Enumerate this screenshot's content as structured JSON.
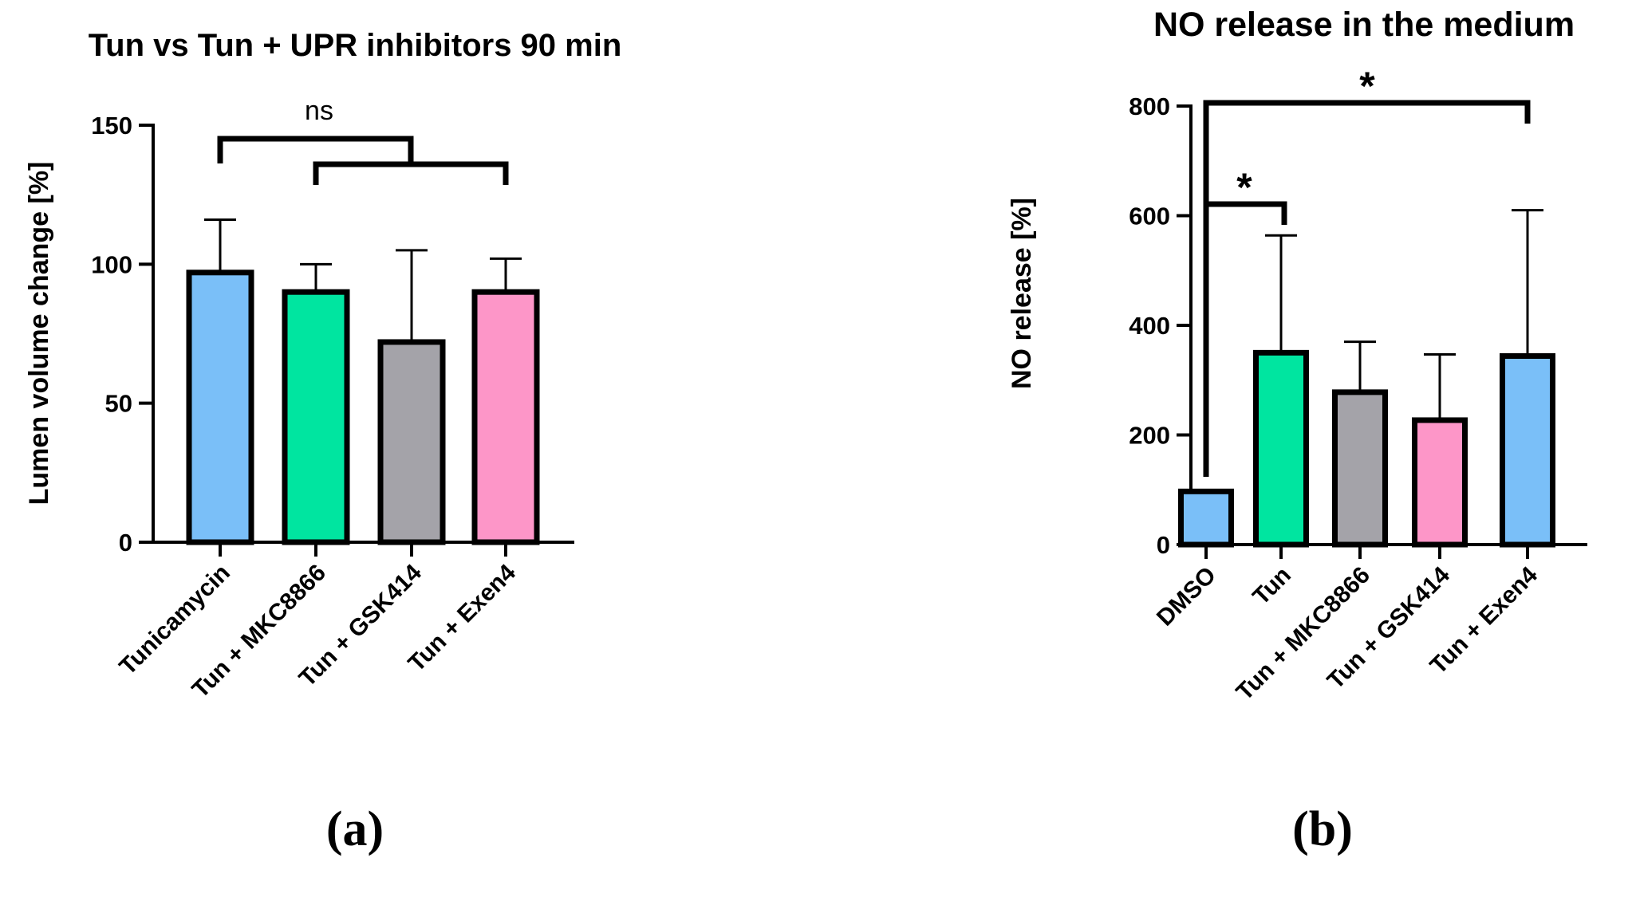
{
  "chart_data": [
    {
      "type": "bar",
      "panel_label": "(a)",
      "title": "Tun vs Tun + UPR inhibitors 90 min",
      "xlabel": "",
      "ylabel": "Lumen volume change [%]",
      "ylim": [
        0,
        150
      ],
      "yticks": [
        0,
        50,
        100,
        150
      ],
      "categories": [
        "Tunicamycin",
        "Tun + MKC8866",
        "Tun + GSK414",
        "Tun + Exen4"
      ],
      "values": [
        97,
        90,
        72,
        90
      ],
      "errors": [
        19,
        10,
        33,
        12
      ],
      "colors": [
        "#7ABFF8",
        "#00E5A0",
        "#A4A3A9",
        "#FD96C8"
      ],
      "grid": false,
      "annotations": [
        {
          "text": "ns",
          "type": "bracket",
          "from": 0,
          "to_group": [
            1,
            3
          ]
        }
      ]
    },
    {
      "type": "bar",
      "panel_label": "(b)",
      "title": "NO release in the medium",
      "xlabel": "",
      "ylabel": "NO release [%]",
      "ylim": [
        0,
        800
      ],
      "yticks": [
        0,
        200,
        400,
        600,
        800
      ],
      "categories": [
        "DMSO",
        "Tun",
        "Tun + MKC8866",
        "Tun + GSK414",
        "Tun + Exen4"
      ],
      "values": [
        97,
        350,
        278,
        227,
        344
      ],
      "errors": [
        0,
        214,
        92,
        120,
        266
      ],
      "colors": [
        "#7ABFF8",
        "#00E5A0",
        "#A4A3A9",
        "#FD96C8",
        "#7ABFF8"
      ],
      "grid": false,
      "annotations": [
        {
          "text": "*",
          "type": "bracket",
          "from": 0,
          "to": 1
        },
        {
          "text": "*",
          "type": "bracket",
          "from": 0,
          "to": 4
        }
      ]
    }
  ]
}
